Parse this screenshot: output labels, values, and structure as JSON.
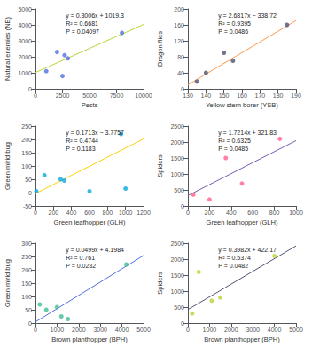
{
  "chart_data": [
    {
      "type": "scatter",
      "xlabel": "Pests",
      "ylabel": "Natural enemies (NE)",
      "annotations": [
        "y = 0.3006x + 1019.3",
        "R² = 0.6681",
        "P = 0.04097"
      ],
      "series": [
        {
          "type": "scatter",
          "x": [
            1000,
            2000,
            2500,
            2700,
            3000,
            8000
          ],
          "values": [
            1100,
            2300,
            800,
            2100,
            1900,
            3500
          ]
        },
        {
          "type": "line",
          "x": [
            0,
            10000
          ],
          "values": [
            1019.3,
            4025.3
          ]
        }
      ],
      "xlim": [
        0,
        10000
      ],
      "ylim": [
        0,
        5000
      ],
      "xticks": [
        0,
        2500,
        5000,
        7500,
        10000
      ],
      "yticks": [
        0,
        1000,
        2000,
        3000,
        4000,
        5000
      ],
      "grid": false
    },
    {
      "type": "scatter",
      "xlabel": "Yellow stem borer (YSB)",
      "ylabel": "Dragon flies",
      "annotations": [
        "y = 2.6817x − 338.72",
        "R² = 0.9395",
        "P = 0.0486"
      ],
      "series": [
        {
          "type": "scatter",
          "x": [
            135,
            140,
            150,
            155,
            185
          ],
          "values": [
            18,
            40,
            90,
            70,
            160
          ]
        },
        {
          "type": "line",
          "x": [
            130,
            190
          ],
          "values": [
            9.901,
            170.803
          ]
        }
      ],
      "xlim": [
        130,
        190
      ],
      "ylim": [
        0,
        200
      ],
      "xticks": [
        130,
        140,
        150,
        160,
        170,
        180,
        190
      ],
      "yticks": [
        0,
        40,
        80,
        120,
        160,
        200
      ],
      "grid": false
    },
    {
      "type": "scatter",
      "xlabel": "Green leafhopper (GLH)",
      "ylabel": "Green mirid bug",
      "annotations": [
        "y = 0.1713x − 3.7757",
        "R² = 0.4744",
        "P = 0.1183"
      ],
      "series": [
        {
          "type": "scatter",
          "x": [
            10,
            100,
            280,
            320,
            600,
            950,
            1000
          ],
          "values": [
            5,
            65,
            50,
            45,
            5,
            220,
            15
          ]
        },
        {
          "type": "line",
          "x": [
            0,
            1200
          ],
          "values": [
            -3.7757,
            201.7843
          ]
        }
      ],
      "xlim": [
        0,
        1200
      ],
      "ylim": [
        -50,
        250
      ],
      "xticks": [
        0,
        200,
        400,
        600,
        800,
        1000,
        1200
      ],
      "yticks": [
        -50,
        0,
        50,
        100,
        150,
        200,
        250
      ],
      "grid": false
    },
    {
      "type": "scatter",
      "xlabel": "Green leafhopper (GLH)",
      "ylabel": "Spiders",
      "annotations": [
        "y = 1.7214x + 321.83",
        "R² = 0.6325",
        "P = 0.0485"
      ],
      "series": [
        {
          "type": "scatter",
          "x": [
            50,
            200,
            350,
            500,
            850
          ],
          "values": [
            350,
            200,
            1500,
            700,
            2100
          ]
        },
        {
          "type": "line",
          "x": [
            0,
            1000
          ],
          "values": [
            321.83,
            2043.23
          ]
        }
      ],
      "xlim": [
        0,
        1000
      ],
      "ylim": [
        0,
        2500
      ],
      "xticks": [
        0,
        200,
        400,
        600,
        800,
        1000
      ],
      "yticks": [
        0,
        500,
        1000,
        1500,
        2000,
        2500
      ],
      "grid": false
    },
    {
      "type": "scatter",
      "xlabel": "Brown planthopper (BPH)",
      "ylabel": "Green mirid bug",
      "annotations": [
        "y = 0.0499x + 4.1984",
        "R² = 0.761",
        "P = 0.0232"
      ],
      "series": [
        {
          "type": "scatter",
          "x": [
            200,
            500,
            1000,
            1200,
            1500,
            4200
          ],
          "values": [
            70,
            50,
            60,
            25,
            15,
            220
          ]
        },
        {
          "type": "line",
          "x": [
            0,
            5000
          ],
          "values": [
            4.1984,
            253.6984
          ]
        }
      ],
      "xlim": [
        0,
        5000
      ],
      "ylim": [
        0,
        300
      ],
      "xticks": [
        0,
        1000,
        2000,
        3000,
        4000,
        5000
      ],
      "yticks": [
        0,
        50,
        100,
        150,
        200,
        250,
        300
      ],
      "grid": false
    },
    {
      "type": "scatter",
      "xlabel": "Brown planthopper (BPH)",
      "ylabel": "Spiders",
      "annotations": [
        "y = 0.3982x + 422.17",
        "R² = 0.5374",
        "P = 0.0482"
      ],
      "series": [
        {
          "type": "scatter",
          "x": [
            200,
            500,
            1100,
            1500,
            4000
          ],
          "values": [
            300,
            1600,
            700,
            800,
            2100
          ]
        },
        {
          "type": "line",
          "x": [
            0,
            5000
          ],
          "values": [
            422.17,
            2413.17
          ]
        }
      ],
      "xlim": [
        0,
        5000
      ],
      "ylim": [
        0,
        2500
      ],
      "xticks": [
        0,
        1000,
        2000,
        3000,
        4000,
        5000
      ],
      "yticks": [
        0,
        500,
        1000,
        1500,
        2000,
        2500
      ],
      "grid": false
    }
  ]
}
